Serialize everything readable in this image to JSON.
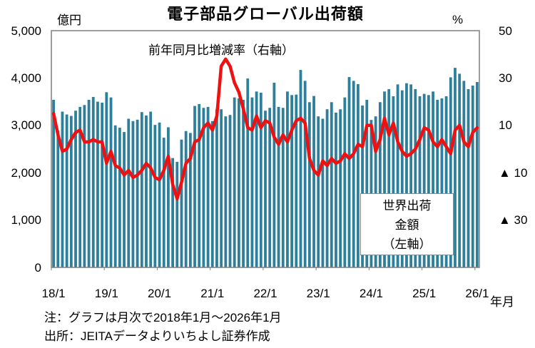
{
  "title": "電子部品グローバル出荷額",
  "left_axis": {
    "unit": "億円",
    "min": 0,
    "max": 5000,
    "ticks": [
      "5,000",
      "4,000",
      "3,000",
      "2,000",
      "1,000",
      "0"
    ]
  },
  "right_axis": {
    "unit": "%",
    "min": -50,
    "max": 50,
    "ticks": [
      "50",
      "30",
      "10",
      "▲ 10",
      "▲ 30"
    ]
  },
  "x_axis": {
    "unit": "年月",
    "ticks": [
      "18/1",
      "19/1",
      "20/1",
      "21/1",
      "22/1",
      "23/1",
      "24/1",
      "25/1",
      "26/1"
    ]
  },
  "annotations": {
    "line_label": "前年同月比増減率（右軸）",
    "bar_label_lines": [
      "世界出荷",
      "金額",
      "（左軸）"
    ]
  },
  "notes": {
    "note1": "注：グラフは月次で2018年1月～2026年1月",
    "note2": "出所：JEITAデータよりいちよし証券作成"
  },
  "colors": {
    "bar": "#2e7f9b",
    "line": "#ee1111",
    "frame": "#7f7f7f",
    "text": "#000000",
    "background": "#ffffff"
  },
  "chart_data": {
    "type": "bar",
    "subtype": "bar+line combo",
    "frequency": "monthly",
    "x_start": "2018/1",
    "x_end": "2026/1",
    "grid": false,
    "left_ylim": [
      0,
      5000
    ],
    "right_ylim": [
      -50,
      50
    ],
    "title": "電子部品グローバル出荷額",
    "categories": [
      "18/1",
      "18/2",
      "18/3",
      "18/4",
      "18/5",
      "18/6",
      "18/7",
      "18/8",
      "18/9",
      "18/10",
      "18/11",
      "18/12",
      "19/1",
      "19/2",
      "19/3",
      "19/4",
      "19/5",
      "19/6",
      "19/7",
      "19/8",
      "19/9",
      "19/10",
      "19/11",
      "19/12",
      "20/1",
      "20/2",
      "20/3",
      "20/4",
      "20/5",
      "20/6",
      "20/7",
      "20/8",
      "20/9",
      "20/10",
      "20/11",
      "20/12",
      "21/1",
      "21/2",
      "21/3",
      "21/4",
      "21/5",
      "21/6",
      "21/7",
      "21/8",
      "21/9",
      "21/10",
      "21/11",
      "21/12",
      "22/1",
      "22/2",
      "22/3",
      "22/4",
      "22/5",
      "22/6",
      "22/7",
      "22/8",
      "22/9",
      "22/10",
      "22/11",
      "22/12",
      "23/1",
      "23/2",
      "23/3",
      "23/4",
      "23/5",
      "23/6",
      "23/7",
      "23/8",
      "23/9",
      "23/10",
      "23/11",
      "23/12",
      "24/1",
      "24/2",
      "24/3",
      "24/4",
      "24/5",
      "24/6",
      "24/7",
      "24/8",
      "24/9",
      "24/10",
      "24/11",
      "24/12",
      "25/1",
      "25/2",
      "25/3",
      "25/4",
      "25/5",
      "25/6",
      "25/7",
      "25/8",
      "25/9",
      "25/10",
      "25/11",
      "25/12",
      "26/1"
    ],
    "series": [
      {
        "name": "世界出荷金額（左軸）",
        "type": "bar",
        "axis": "left",
        "unit": "億円",
        "values": [
          3540,
          2890,
          3290,
          3230,
          3200,
          3310,
          3390,
          3430,
          3540,
          3600,
          3500,
          3480,
          3700,
          3590,
          3000,
          2950,
          2860,
          3140,
          3090,
          3120,
          3280,
          3210,
          3290,
          3010,
          3060,
          2740,
          2960,
          2310,
          2230,
          2700,
          2880,
          2840,
          3410,
          3450,
          3370,
          3390,
          3090,
          3340,
          3340,
          3190,
          3220,
          3590,
          3570,
          3540,
          3990,
          3590,
          3715,
          3690,
          3310,
          3370,
          3900,
          3390,
          3370,
          3715,
          3640,
          3650,
          4170,
          3940,
          3490,
          3620,
          3190,
          3140,
          3340,
          3490,
          3270,
          3340,
          3590,
          4020,
          3940,
          3870,
          3420,
          3540,
          3115,
          3190,
          3490,
          3715,
          3765,
          3615,
          3865,
          3740,
          3890,
          3865,
          3765,
          3615,
          3665,
          3640,
          3715,
          3540,
          3570,
          3615,
          4015,
          4215,
          4090,
          3940,
          3765,
          3840,
          3915
        ]
      },
      {
        "name": "前年同月比増減率（右軸）",
        "type": "line",
        "axis": "right",
        "unit": "%",
        "values": [
          15,
          6,
          -1,
          0,
          4,
          7,
          8,
          3,
          3,
          4,
          3,
          3,
          -6,
          -1,
          -7,
          -8,
          -11,
          -9,
          -12,
          -11,
          -9,
          -6,
          -8,
          -12,
          -13,
          -9,
          -3,
          -15,
          -21,
          -14,
          -6,
          -4,
          3,
          4,
          9,
          11,
          8,
          14,
          35,
          38,
          35,
          28,
          24,
          17,
          9,
          8,
          14,
          9,
          12,
          11,
          5,
          2,
          6,
          3,
          8,
          12,
          13,
          11,
          -4,
          -9,
          -11,
          -5,
          -7,
          -4,
          -6,
          -5,
          -2,
          -4,
          -2,
          2,
          1,
          10,
          10,
          -1,
          4,
          13,
          6,
          11,
          3,
          -1,
          -3,
          -2,
          0,
          4,
          9,
          8,
          3,
          1,
          4,
          1,
          -2,
          8,
          10,
          3,
          1,
          7,
          9
        ]
      }
    ]
  }
}
